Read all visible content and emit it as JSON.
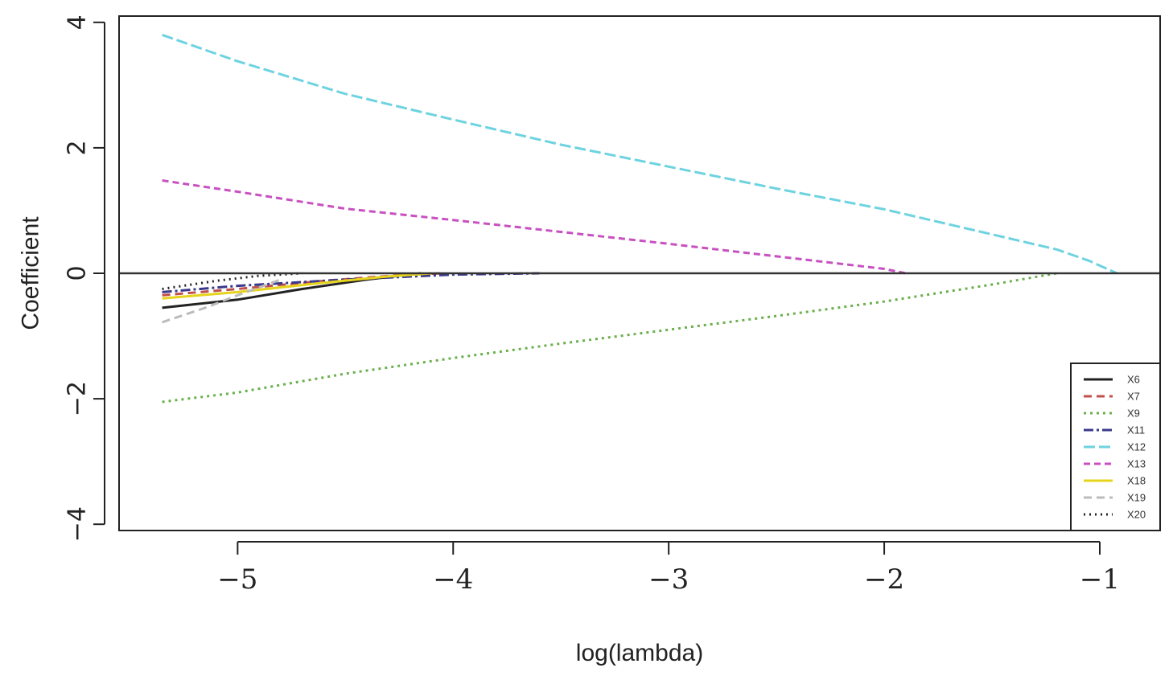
{
  "chart_data": {
    "type": "line",
    "title": "",
    "xlabel": "log(lambda)",
    "ylabel": "Coefficient",
    "xlim": [
      -5.55,
      -0.72
    ],
    "ylim": [
      -4.1,
      4.1
    ],
    "xticks": [
      -5,
      -4,
      -3,
      -2,
      -1
    ],
    "xtick_labels": [
      "−5",
      "−4",
      "−3",
      "−2",
      "−1"
    ],
    "yticks": [
      -4,
      -2,
      0,
      2,
      4
    ],
    "ytick_labels": [
      "−4",
      "−2",
      "0",
      "2",
      "4"
    ],
    "grid": false,
    "zero_line": true,
    "legend_position": "bottom-right",
    "series": [
      {
        "name": "X6",
        "color": "#222222",
        "dash": "none",
        "x": [
          -5.35,
          -5.0,
          -4.7,
          -4.4,
          -4.15
        ],
        "y": [
          -0.55,
          -0.42,
          -0.25,
          -0.1,
          0.0
        ]
      },
      {
        "name": "X7",
        "color": "#c0504d",
        "dash": "10,6",
        "x": [
          -5.35,
          -5.0,
          -4.6,
          -4.25,
          -4.05
        ],
        "y": [
          -0.35,
          -0.25,
          -0.12,
          -0.03,
          0.0
        ]
      },
      {
        "name": "X9",
        "color": "#6ab04c",
        "dash": "3,5",
        "x": [
          -5.35,
          -5.0,
          -4.5,
          -4.0,
          -3.5,
          -3.0,
          -2.5,
          -2.0,
          -1.5,
          -1.2
        ],
        "y": [
          -2.05,
          -1.9,
          -1.6,
          -1.35,
          -1.12,
          -0.9,
          -0.68,
          -0.45,
          -0.18,
          0.0
        ]
      },
      {
        "name": "X11",
        "color": "#3a3a8c",
        "dash": "12,4,3,4",
        "x": [
          -5.35,
          -5.0,
          -4.5,
          -4.0,
          -3.6
        ],
        "y": [
          -0.3,
          -0.2,
          -0.1,
          -0.02,
          0.0
        ]
      },
      {
        "name": "X12",
        "color": "#6ed3e0",
        "dash": "14,5",
        "x": [
          -5.35,
          -5.0,
          -4.5,
          -4.0,
          -3.5,
          -3.0,
          -2.5,
          -2.0,
          -1.5,
          -1.2,
          -1.05,
          -0.92
        ],
        "y": [
          3.8,
          3.38,
          2.86,
          2.45,
          2.05,
          1.7,
          1.35,
          1.02,
          0.62,
          0.38,
          0.2,
          0.0
        ]
      },
      {
        "name": "X13",
        "color": "#c850c0",
        "dash": "8,5",
        "x": [
          -5.35,
          -5.0,
          -4.5,
          -4.0,
          -3.5,
          -3.0,
          -2.5,
          -2.0,
          -1.9
        ],
        "y": [
          1.48,
          1.3,
          1.03,
          0.85,
          0.66,
          0.47,
          0.27,
          0.07,
          0.0
        ]
      },
      {
        "name": "X18",
        "color": "#e6d41c",
        "dash": "none",
        "x": [
          -5.35,
          -5.0,
          -4.6,
          -4.3,
          -4.1
        ],
        "y": [
          -0.4,
          -0.3,
          -0.15,
          -0.05,
          0.0
        ]
      },
      {
        "name": "X19",
        "color": "#bbbbbb",
        "dash": "10,6",
        "x": [
          -5.35,
          -5.15,
          -5.0,
          -4.8
        ],
        "y": [
          -0.78,
          -0.55,
          -0.35,
          -0.1
        ]
      },
      {
        "name": "X20",
        "color": "#222222",
        "dash": "2,5",
        "x": [
          -5.35,
          -5.1,
          -4.9,
          -4.7
        ],
        "y": [
          -0.25,
          -0.12,
          -0.04,
          0.0
        ]
      }
    ]
  }
}
